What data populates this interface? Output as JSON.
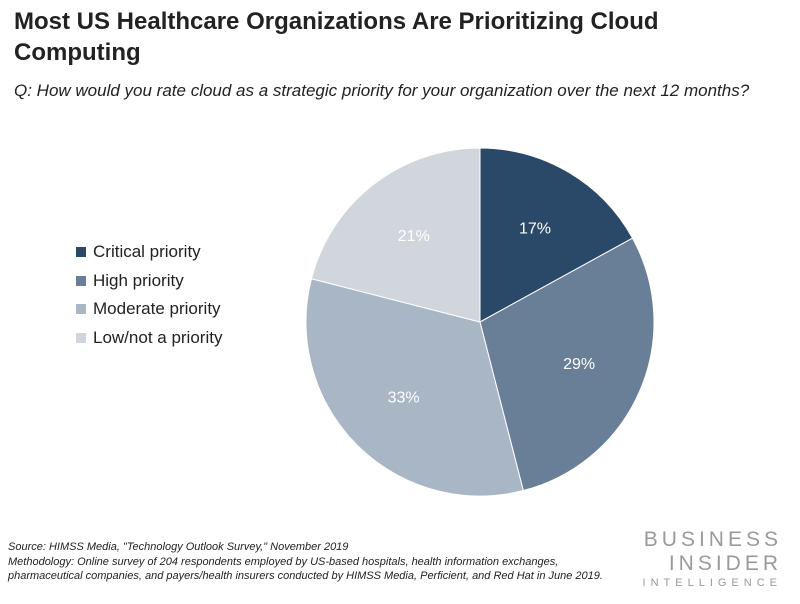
{
  "header": {
    "title": "Most US Healthcare Organizations Are Prioritizing Cloud Computing",
    "subtitle": "Q: How would you rate cloud as a strategic priority for your organization over the next 12 months?"
  },
  "chart_data": {
    "type": "pie",
    "title": "Most US Healthcare Organizations Are Prioritizing Cloud Computing",
    "subtitle": "Q: How would you rate cloud as a strategic priority for your organization over the next 12 months?",
    "categories": [
      "Critical priority",
      "High priority",
      "Moderate priority",
      "Low/not a priority"
    ],
    "values": [
      17,
      29,
      33,
      21
    ],
    "labels": [
      "17%",
      "29%",
      "33%",
      "21%"
    ],
    "colors": [
      "#2a4868",
      "#697f97",
      "#a9b6c6",
      "#d0d6dc"
    ],
    "label_colors": [
      "#ffffff",
      "#ffffff",
      "#ffffff",
      "#ffffff"
    ],
    "legend_position": "left",
    "unit": "%"
  },
  "footer": {
    "source": "Source: HIMSS Media, \"Technology Outlook Survey,\" November 2019",
    "methodology": "Methodology: Online survey of 204 respondents employed by US-based hospitals, health information exchanges, pharmaceutical companies, and payers/health insurers conducted by HIMSS Media, Perficient, and Red Hat in June 2019."
  },
  "brand": {
    "line1": "BUSINESS",
    "line2": "INSIDER",
    "line3": "INTELLIGENCE"
  }
}
